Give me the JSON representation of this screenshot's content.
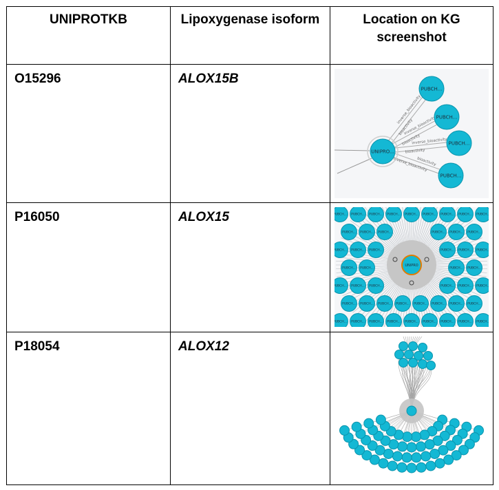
{
  "table": {
    "headers": [
      "UNIPROTKB",
      "Lipoxygenase isoform",
      "Location on KG screenshot"
    ],
    "rows": [
      {
        "uniprotkb": "O15296",
        "isoform": "ALOX15B"
      },
      {
        "uniprotkb": "P16050",
        "isoform": "ALOX15"
      },
      {
        "uniprotkb": "P18054",
        "isoform": "ALOX12"
      }
    ]
  },
  "graph1": {
    "center_label": "UNIPRO...",
    "node_label": "PUBCH...",
    "edge_labels": [
      "bioactivity",
      "inverse_bioactivity",
      "bioactivity",
      "inverse_bioactivity",
      "bioactivity",
      "inverse_bioactivity",
      "inverse_bioactivity",
      "bioactivity"
    ]
  },
  "graph2": {
    "center_label": "UNIPRO",
    "node_label": "PUBCH..."
  },
  "colors": {
    "node_fill": "#14b8d4",
    "node_stroke": "#0a94ad",
    "background": "#f5f6f8",
    "center_ring": "#c9c9c9",
    "center_outline": "#e07b00"
  }
}
